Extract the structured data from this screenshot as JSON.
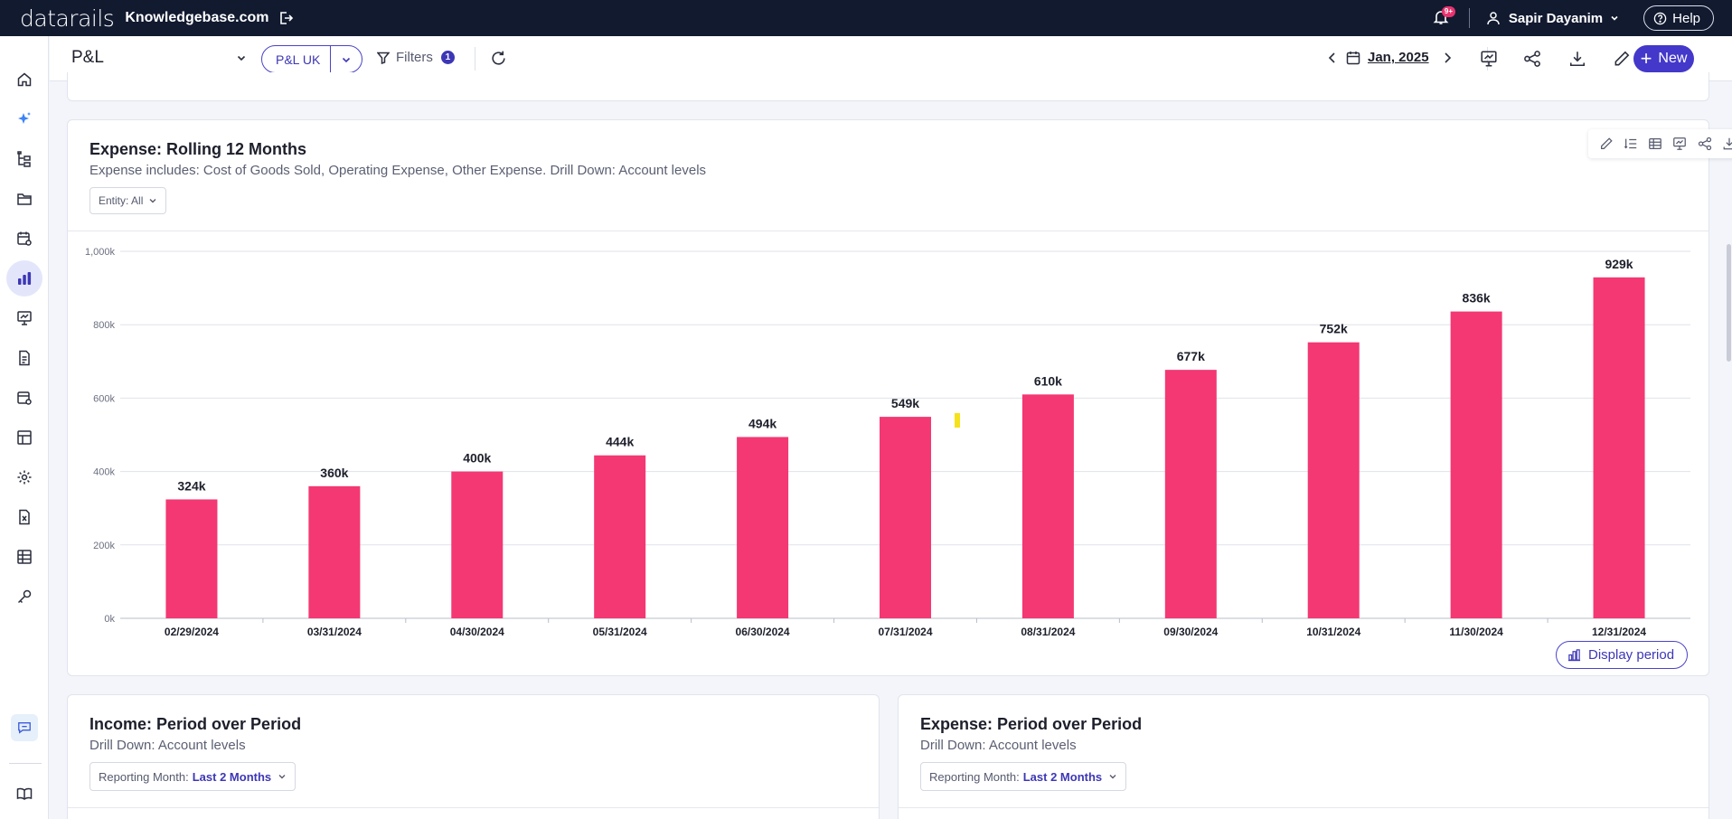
{
  "topbar": {
    "logo": "datarails",
    "site": "Knowledgebase.com",
    "notifications_badge": "9+",
    "user_name": "Sapir Dayanim",
    "help_label": "Help"
  },
  "sidebar": {
    "items": [
      "home-icon",
      "sparkle-icon",
      "hierarchy-icon",
      "folder-icon",
      "calendar-gear-icon",
      "bar-chart-icon",
      "presentation-icon",
      "document-icon",
      "report-gear-icon",
      "table-layout-icon",
      "settings-icon",
      "excel-file-icon",
      "grid-table-icon",
      "key-icon",
      "chat-icon",
      "book-icon"
    ],
    "active": "bar-chart-icon"
  },
  "pagebar": {
    "title": "P&L",
    "view_label": "P&L UK",
    "filters_label": "Filters",
    "filters_count": "1",
    "period_label": "Jan, 2025",
    "new_label": "New"
  },
  "main_card": {
    "title": "Expense: Rolling 12 Months",
    "subtitle": "Expense includes: Cost of Goods Sold, Operating Expense, Other Expense. Drill Down: Account levels",
    "entity_filter": "Entity: All",
    "display_period_label": "Display period",
    "tools": [
      "pencil-icon",
      "sort-list-icon",
      "table-icon",
      "presentation-icon",
      "share-icon",
      "download-icon",
      "expand-icon"
    ]
  },
  "chart_data": {
    "type": "bar",
    "categories": [
      "02/29/2024",
      "03/31/2024",
      "04/30/2024",
      "05/31/2024",
      "06/30/2024",
      "07/31/2024",
      "08/31/2024",
      "09/30/2024",
      "10/31/2024",
      "11/30/2024",
      "12/31/2024"
    ],
    "values": [
      324,
      360,
      400,
      444,
      494,
      549,
      610,
      677,
      752,
      836,
      929
    ],
    "value_labels": [
      "324k",
      "360k",
      "400k",
      "444k",
      "494k",
      "549k",
      "610k",
      "677k",
      "752k",
      "836k",
      "929k"
    ],
    "y_ticks": [
      "0k",
      "200k",
      "400k",
      "600k",
      "800k",
      "1,000k"
    ],
    "ylim": [
      0,
      1000
    ],
    "bar_color": "#f33873",
    "grid": true
  },
  "bottom_cards": [
    {
      "title": "Income: Period over Period",
      "subtitle": "Drill Down: Account levels",
      "report_prefix": "Reporting Month:",
      "report_value": "Last 2 Months"
    },
    {
      "title": "Expense: Period over Period",
      "subtitle": "Drill Down: Account levels",
      "report_prefix": "Reporting Month:",
      "report_value": "Last 2 Months"
    }
  ],
  "colors": {
    "navbar": "#121a30",
    "accent": "#4338ca",
    "bar": "#f33873"
  }
}
